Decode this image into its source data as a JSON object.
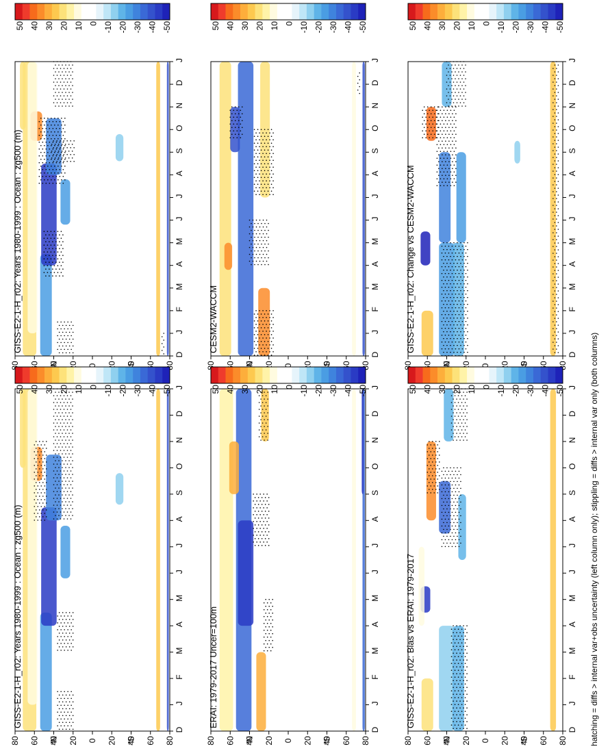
{
  "footnote": "hatching = diffs > internal var+obs uncertainty (left column only); stippling = diffs > internal var only (both columns)",
  "month_labels": [
    "D",
    "J",
    "F",
    "M",
    "A",
    "M",
    "J",
    "J",
    "A",
    "S",
    "O",
    "N",
    "D",
    "J"
  ],
  "lat_labels": [
    "80",
    "60",
    "40",
    "20",
    "0",
    "20",
    "40",
    "60",
    "80"
  ],
  "hemisphere_labels": {
    "north": "°N",
    "south": "°S"
  },
  "colorbar": {
    "tick_labels": [
      "50",
      "40",
      "30",
      "20",
      "10",
      "0",
      "-10",
      "-20",
      "-30",
      "-40",
      "-50"
    ],
    "colors": [
      "#d7191c",
      "#ef3b2c",
      "#f76b1c",
      "#fb8c2a",
      "#fdae3b",
      "#fdc94f",
      "#fde27a",
      "#fff3a8",
      "#fffbe0",
      "#ffffff",
      "#ffffff",
      "#e6f4fb",
      "#bfe6f7",
      "#8fd0ef",
      "#5fb4e8",
      "#4a9de3",
      "#3f83dd",
      "#3a69d6",
      "#3452cc",
      "#2a3bc4",
      "#1e22b8"
    ]
  },
  "chart_data": [
    {
      "type": "heatmap",
      "title": "GISS-E2-1-H_r02: Years 1980-1999 : Ocean : zg500 (m)",
      "x": [
        "D",
        "J",
        "F",
        "M",
        "A",
        "M",
        "J",
        "J",
        "A",
        "S",
        "O",
        "N",
        "D",
        "J"
      ],
      "y": [
        80,
        60,
        40,
        20,
        0,
        -20,
        -40,
        -60,
        -80
      ],
      "zlim": [
        -50,
        50
      ]
    },
    {
      "type": "heatmap",
      "title": "ERAI: 1979-2017 Uncer=100m",
      "x": [
        "D",
        "J",
        "F",
        "M",
        "A",
        "M",
        "J",
        "J",
        "A",
        "S",
        "O",
        "N",
        "D",
        "J"
      ],
      "y": [
        80,
        60,
        40,
        20,
        0,
        -20,
        -40,
        -60,
        -80
      ],
      "zlim": [
        -50,
        50
      ]
    },
    {
      "type": "heatmap",
      "title": "GISS-E2-1-H_r02: Bias vs ERAI: 1979-2017",
      "x": [
        "D",
        "J",
        "F",
        "M",
        "A",
        "M",
        "J",
        "J",
        "A",
        "S",
        "O",
        "N",
        "D",
        "J"
      ],
      "y": [
        80,
        60,
        40,
        20,
        0,
        -20,
        -40,
        -60,
        -80
      ],
      "zlim": [
        -50,
        50
      ]
    },
    {
      "type": "heatmap",
      "title": "GISS-E2-1-H_r02: Years 1980-1999 : Ocean : zg500 (m)",
      "x": [
        "D",
        "J",
        "F",
        "M",
        "A",
        "M",
        "J",
        "J",
        "A",
        "S",
        "O",
        "N",
        "D",
        "J"
      ],
      "y": [
        80,
        60,
        40,
        20,
        0,
        -20,
        -40,
        -60,
        -80
      ],
      "zlim": [
        -50,
        50
      ]
    },
    {
      "type": "heatmap",
      "title": "CESM2-WACCM",
      "x": [
        "D",
        "J",
        "F",
        "M",
        "A",
        "M",
        "J",
        "J",
        "A",
        "S",
        "O",
        "N",
        "D",
        "J"
      ],
      "y": [
        80,
        60,
        40,
        20,
        0,
        -20,
        -40,
        -60,
        -80
      ],
      "zlim": [
        -50,
        50
      ]
    },
    {
      "type": "heatmap",
      "title": "GISS-E2-1-H_r02: Change vs CESM2-WACCM",
      "x": [
        "D",
        "J",
        "F",
        "M",
        "A",
        "M",
        "J",
        "J",
        "A",
        "S",
        "O",
        "N",
        "D",
        "J"
      ],
      "y": [
        80,
        60,
        40,
        20,
        0,
        -20,
        -40,
        -60,
        -80
      ],
      "zlim": [
        -50,
        50
      ]
    }
  ]
}
